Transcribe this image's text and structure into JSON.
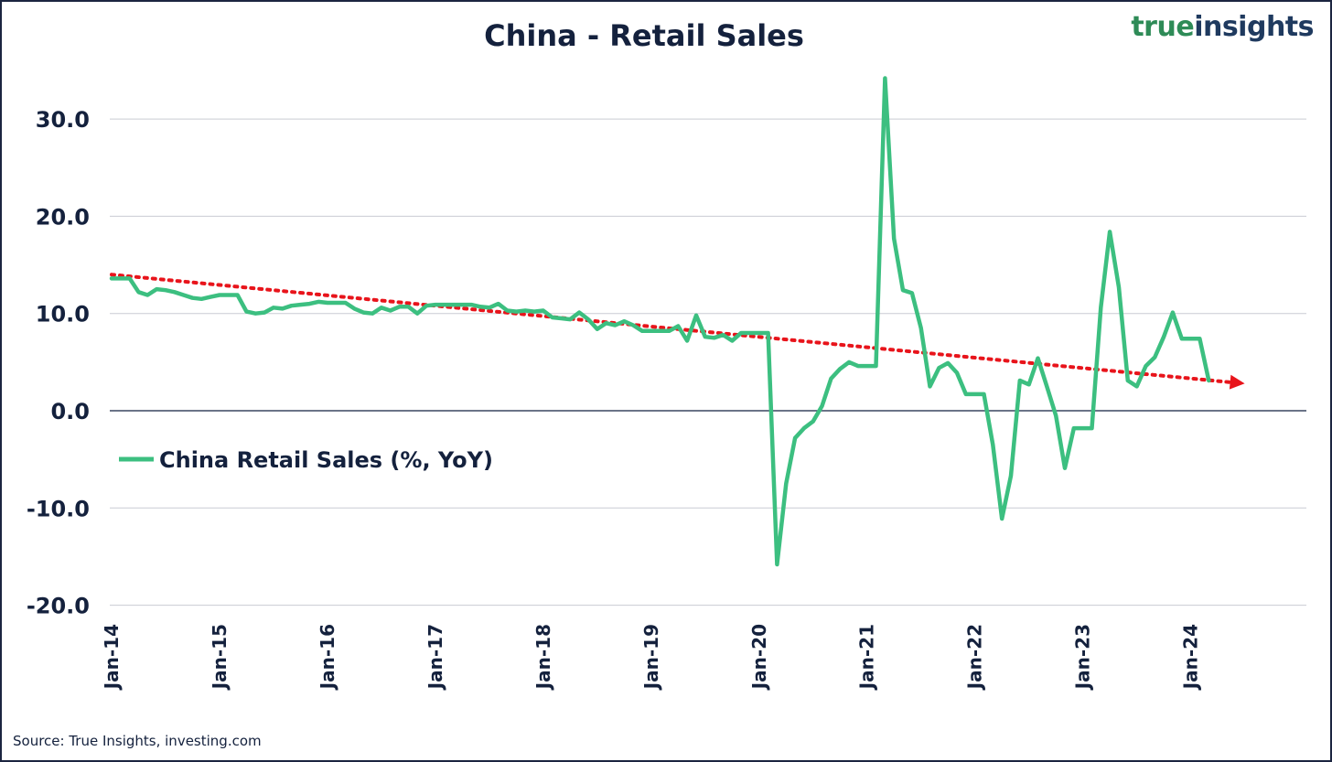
{
  "title": "China - Retail Sales",
  "brand": {
    "word1": "true",
    "word2": "insights",
    "color1": "#2e8b57",
    "color2": "#1f3a5f"
  },
  "source": "Source: True Insights, investing.com",
  "chart_data": {
    "type": "line",
    "title": "China - Retail Sales",
    "xlabel": "",
    "ylabel": "",
    "ylim": [
      -20,
      35
    ],
    "yticks": [
      30.0,
      20.0,
      10.0,
      0.0,
      -10.0,
      -20.0
    ],
    "ytick_labels": [
      "30.0",
      "20.0",
      "10.0",
      "0.0",
      "-10.0",
      "-20.0"
    ],
    "xtick_labels": [
      "Jan-14",
      "Jan-15",
      "Jan-16",
      "Jan-17",
      "Jan-18",
      "Jan-19",
      "Jan-20",
      "Jan-21",
      "Jan-22",
      "Jan-23",
      "Jan-24"
    ],
    "xtick_months": [
      0,
      12,
      24,
      36,
      48,
      60,
      72,
      84,
      96,
      108,
      120
    ],
    "grid": true,
    "legend": "left-middle",
    "series": [
      {
        "name": "China Retail Sales (%, YoY)",
        "color": "#3cbf80",
        "values": [
          13.6,
          13.6,
          13.6,
          12.2,
          11.9,
          12.5,
          12.4,
          12.2,
          11.9,
          11.6,
          11.5,
          11.7,
          11.9,
          11.9,
          11.9,
          10.2,
          10.0,
          10.1,
          10.6,
          10.5,
          10.8,
          10.9,
          11.0,
          11.2,
          11.1,
          11.1,
          11.1,
          10.5,
          10.1,
          10.0,
          10.6,
          10.3,
          10.7,
          10.7,
          10.0,
          10.8,
          10.9,
          10.9,
          10.9,
          10.9,
          10.9,
          10.7,
          10.6,
          11.0,
          10.3,
          10.2,
          10.3,
          10.2,
          10.3,
          9.6,
          9.5,
          9.4,
          10.1,
          9.4,
          8.4,
          9.0,
          8.8,
          9.2,
          8.8,
          8.2,
          8.2,
          8.2,
          8.2,
          8.7,
          7.2,
          9.8,
          7.6,
          7.5,
          7.8,
          7.2,
          8.0,
          8.0,
          8.0,
          8.0,
          -15.8,
          -7.5,
          -2.8,
          -1.8,
          -1.1,
          0.5,
          3.3,
          4.3,
          5.0,
          4.6,
          4.6,
          4.6,
          34.2,
          17.7,
          12.4,
          12.1,
          8.5,
          2.5,
          4.4,
          4.9,
          3.9,
          1.7,
          1.7,
          1.7,
          -3.5,
          -11.1,
          -6.7,
          3.1,
          2.7,
          5.4,
          2.5,
          -0.5,
          -5.9,
          -1.8,
          -1.8,
          -1.8,
          10.6,
          18.4,
          12.7,
          3.1,
          2.5,
          4.6,
          5.5,
          7.6,
          10.1,
          7.4,
          7.4,
          7.4,
          3.1
        ]
      }
    ],
    "trendline": {
      "name": "trend",
      "color": "#e8141b",
      "start": {
        "month": 0,
        "value": 14.0
      },
      "end": {
        "month": 126,
        "value": 2.8
      }
    }
  }
}
